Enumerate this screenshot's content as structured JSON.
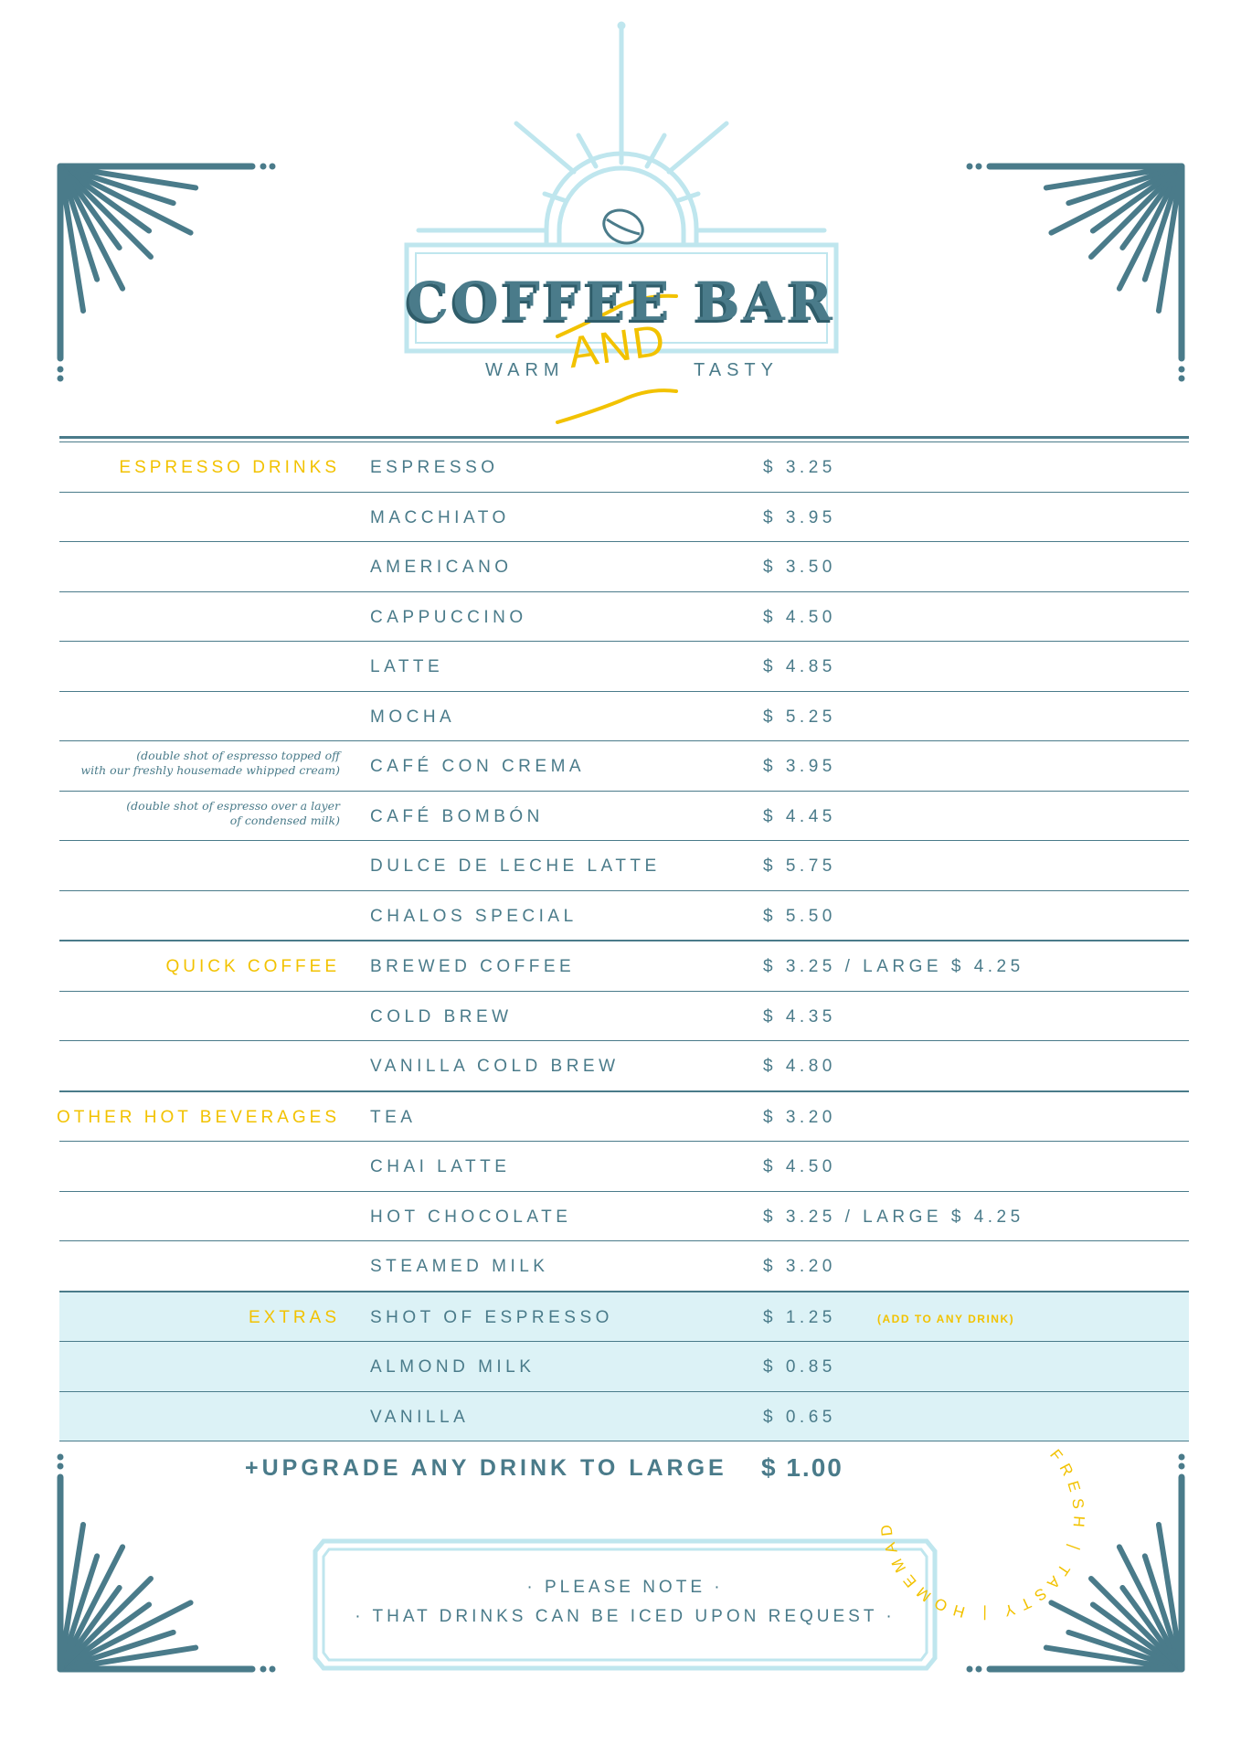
{
  "header": {
    "title": "COFFEE BAR",
    "left_word": "WARM",
    "connector": "AND",
    "right_word": "TASTY"
  },
  "colors": {
    "teal": "#4a7b8a",
    "light_blue": "#bfe6ee",
    "extras_bg": "#dcf2f6",
    "yellow": "#f2c200"
  },
  "sections": [
    {
      "category": "ESPRESSO DRINKS",
      "items": [
        {
          "name": "ESPRESSO",
          "price": "$ 3.25"
        },
        {
          "name": "MACCHIATO",
          "price": "$ 3.95"
        },
        {
          "name": "AMERICANO",
          "price": "$ 3.50"
        },
        {
          "name": "CAPPUCCINO",
          "price": "$ 4.50"
        },
        {
          "name": "LATTE",
          "price": "$ 4.85"
        },
        {
          "name": "MOCHA",
          "price": "$ 5.25"
        },
        {
          "name": "CAFÉ CON CREMA",
          "price": "$ 3.95",
          "note": [
            "(double shot of espresso topped off",
            "with our freshly housemade whipped cream)"
          ]
        },
        {
          "name": "CAFÉ BOMBÓN",
          "price": "$ 4.45",
          "note": [
            "(double shot of espresso over a layer",
            "of condensed milk)"
          ]
        },
        {
          "name": "DULCE DE LECHE LATTE",
          "price": "$ 5.75"
        },
        {
          "name": "CHALOS SPECIAL",
          "price": "$ 5.50"
        }
      ]
    },
    {
      "category": "QUICK COFFEE",
      "items": [
        {
          "name": "BREWED  COFFEE",
          "price": "$ 3.25 / LARGE $ 4.25"
        },
        {
          "name": "COLD BREW",
          "price": "$ 4.35"
        },
        {
          "name": "VANILLA COLD BREW",
          "price": "$ 4.80"
        }
      ]
    },
    {
      "category": "OTHER HOT BEVERAGES",
      "items": [
        {
          "name": "TEA",
          "price": "$ 3.20"
        },
        {
          "name": "CHAI LATTE",
          "price": "$ 4.50"
        },
        {
          "name": "HOT CHOCOLATE",
          "price": "$ 3.25 / LARGE $ 4.25"
        },
        {
          "name": "STEAMED MILK",
          "price": "$ 3.20"
        }
      ]
    },
    {
      "category": "EXTRAS",
      "highlight": true,
      "items": [
        {
          "name": "SHOT OF ESPRESSO",
          "price": "$ 1.25",
          "tag": "(ADD TO ANY DRINK)"
        },
        {
          "name": "ALMOND MILK",
          "price": "$ 0.85"
        },
        {
          "name": "VANILLA",
          "price": "$ 0.65"
        }
      ]
    }
  ],
  "upgrade": {
    "label": "+UPGRADE ANY DRINK TO LARGE",
    "price": "$ 1.00"
  },
  "notice": {
    "heading": "· PLEASE NOTE ·",
    "text": "· THAT DRINKS CAN BE ICED UPON REQUEST ·"
  },
  "stamp": {
    "text": "FRESH | TASTY | HOMEMADE | LOCAL | "
  },
  "icons": [
    "coffee-bean-icon",
    "sunburst-ornament",
    "corner-ray-ornament"
  ]
}
